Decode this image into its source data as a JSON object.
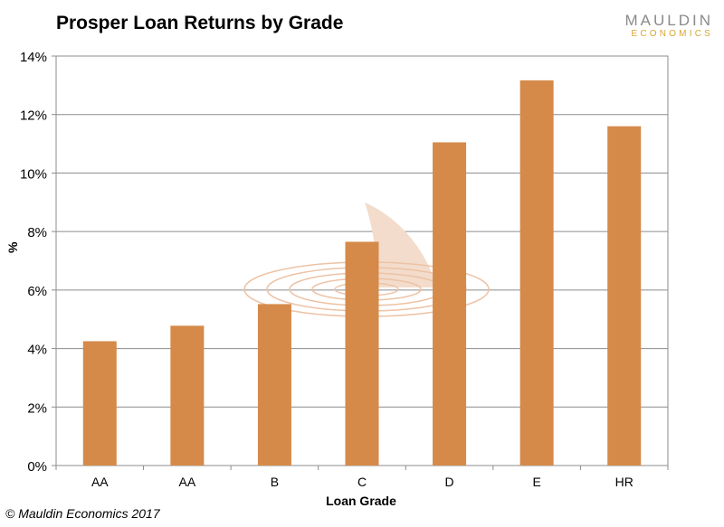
{
  "title": "Prosper Loan Returns by Grade",
  "logo": {
    "top": "MAULDIN",
    "bottom": "ECONOMICS"
  },
  "copyright": "© Mauldin Economics 2017",
  "colors": {
    "bar": "#d58a4a",
    "grid": "#8c8c8c",
    "watermark": "#f3dccb"
  },
  "chart_data": {
    "type": "bar",
    "title": "Prosper Loan Returns by Grade",
    "xlabel": "Loan Grade",
    "ylabel": "%",
    "categories": [
      "AA",
      "AA",
      "B",
      "C",
      "D",
      "E",
      "HR"
    ],
    "values": [
      4.25,
      4.78,
      5.52,
      7.65,
      11.05,
      13.17,
      11.6
    ],
    "ylim": [
      0,
      14
    ],
    "yticks": [
      0,
      2,
      4,
      6,
      8,
      10,
      12,
      14
    ],
    "ytick_labels": [
      "0%",
      "2%",
      "4%",
      "6%",
      "8%",
      "10%",
      "12%",
      "14%"
    ],
    "grid": true,
    "legend": "none"
  }
}
